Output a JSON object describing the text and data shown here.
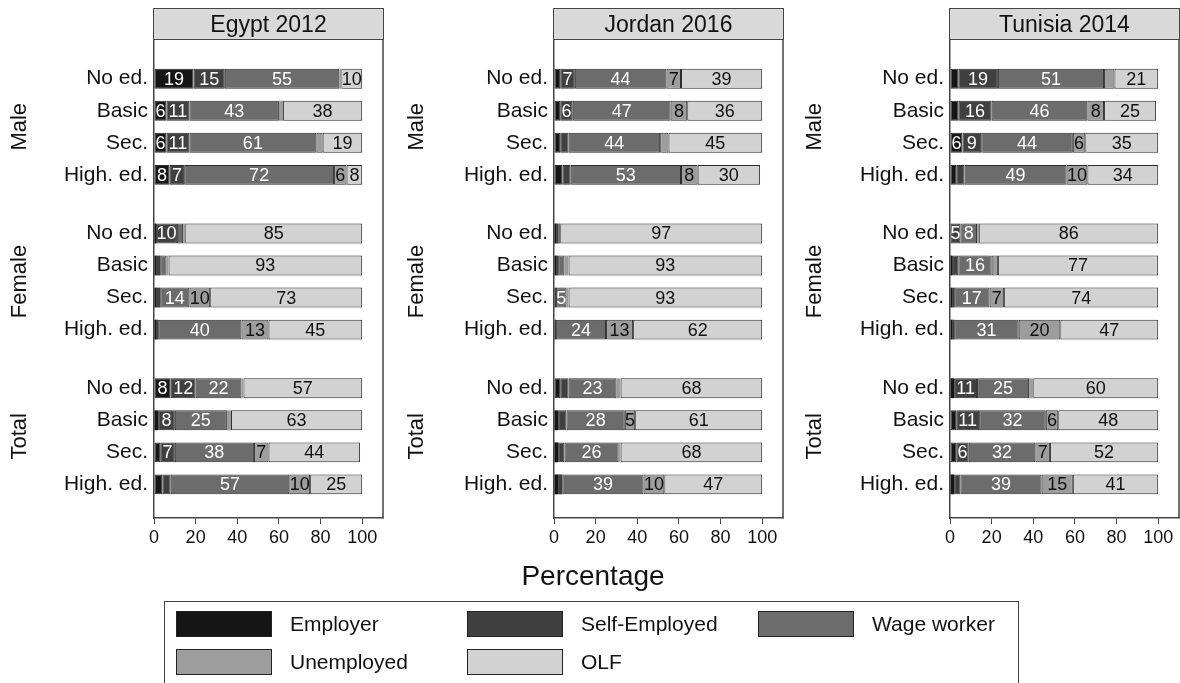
{
  "chart_data": [
    {
      "type": "bar",
      "orientation": "horizontal",
      "stacked": true,
      "title": "Egypt 2012",
      "categories": [
        "No ed.",
        "Basic",
        "Sec.",
        "High. ed.",
        null,
        "No ed.",
        "Basic",
        "Sec.",
        "High. ed.",
        null,
        "No ed.",
        "Basic",
        "Sec.",
        "High. ed."
      ],
      "annotations": [
        "Male",
        "Female",
        "Total"
      ],
      "xlim": [
        0,
        110
      ],
      "xticks": [
        0,
        20,
        40,
        60,
        80,
        100
      ],
      "series": [
        {
          "color": "#161616",
          "values": [
            19,
            6,
            6,
            7.5,
            null,
            1,
            1,
            1,
            1,
            null,
            8,
            2,
            3,
            4
          ],
          "value_labels": [
            "19",
            "6",
            "6",
            "8",
            null,
            null,
            null,
            null,
            null,
            null,
            "8",
            null,
            null,
            null
          ]
        },
        {
          "color": "#404040",
          "values": [
            15,
            11,
            11,
            7,
            null,
            10,
            2,
            2,
            1,
            null,
            12,
            8,
            7,
            4
          ],
          "value_labels": [
            "15",
            "11",
            "11",
            "7",
            null,
            "10",
            null,
            null,
            null,
            null,
            "12",
            "8",
            "7",
            null
          ]
        },
        {
          "color": "#6c6c6c",
          "values": [
            55,
            43,
            61,
            72,
            null,
            3,
            3,
            14,
            40,
            null,
            22,
            25,
            38,
            57
          ],
          "value_labels": [
            "55",
            "43",
            "61",
            "72",
            null,
            null,
            null,
            "14",
            "40",
            null,
            "22",
            "25",
            "38",
            "57"
          ]
        },
        {
          "color": "#9d9d9d",
          "values": [
            1,
            2,
            3,
            6,
            null,
            1,
            1,
            10,
            13,
            null,
            1,
            2,
            7,
            10
          ],
          "value_labels": [
            null,
            null,
            null,
            "6",
            null,
            null,
            null,
            "10",
            "13",
            null,
            null,
            null,
            "7",
            "10"
          ]
        },
        {
          "color": "#d2d2d2",
          "values": [
            10,
            38,
            19,
            7.5,
            null,
            85,
            93,
            73,
            45,
            null,
            57,
            63,
            44,
            25
          ],
          "value_labels": [
            "10",
            "38",
            "19",
            "8",
            null,
            "85",
            "93",
            "73",
            "45",
            null,
            "57",
            "63",
            "44",
            "25"
          ]
        }
      ]
    },
    {
      "type": "bar",
      "orientation": "horizontal",
      "stacked": true,
      "title": "Jordan 2016",
      "xlabel": "Percentage",
      "legend": "bottom",
      "categories": [
        "No ed.",
        "Basic",
        "Sec.",
        "High. ed.",
        null,
        "No ed.",
        "Basic",
        "Sec.",
        "High. ed.",
        null,
        "No ed.",
        "Basic",
        "Sec.",
        "High. ed."
      ],
      "annotations": [
        "Male",
        "Female",
        "Total"
      ],
      "xlim": [
        0,
        110
      ],
      "xticks": [
        0,
        20,
        40,
        60,
        80,
        100
      ],
      "series": [
        {
          "name": "Employer",
          "color": "#161616",
          "values": [
            3,
            3,
            3,
            4,
            null,
            1,
            1,
            0,
            0,
            null,
            3,
            2,
            2,
            2
          ]
        },
        {
          "name": "Self-Employed",
          "color": "#404040",
          "values": [
            7,
            6,
            4,
            4,
            null,
            1,
            1,
            1,
            1,
            null,
            4,
            4,
            3,
            2
          ],
          "value_labels": [
            "7",
            "6",
            null,
            null,
            null,
            null,
            null,
            null,
            null,
            null,
            null,
            null,
            null,
            null
          ]
        },
        {
          "name": "Wage worker",
          "color": "#6c6c6c",
          "values": [
            44,
            47,
            44,
            53,
            null,
            1,
            3,
            5,
            24,
            null,
            23,
            28,
            26,
            39
          ],
          "value_labels": [
            "44",
            "47",
            "44",
            "53",
            null,
            null,
            null,
            "5",
            "24",
            null,
            "23",
            "28",
            "26",
            "39"
          ]
        },
        {
          "name": "Unemployed",
          "color": "#9d9d9d",
          "values": [
            7,
            8,
            4,
            8,
            null,
            0,
            2,
            1,
            13,
            null,
            2,
            5,
            1,
            10
          ],
          "value_labels": [
            "7",
            "8",
            null,
            "8",
            null,
            null,
            null,
            null,
            "13",
            null,
            null,
            "5",
            null,
            "10"
          ]
        },
        {
          "name": "OLF",
          "color": "#d2d2d2",
          "values": [
            39,
            36,
            45,
            30,
            null,
            97,
            93,
            93,
            62,
            null,
            68,
            61,
            68,
            47
          ],
          "value_labels": [
            "39",
            "36",
            "45",
            "30",
            null,
            "97",
            "93",
            "93",
            "62",
            null,
            "68",
            "61",
            "68",
            "47"
          ]
        }
      ]
    },
    {
      "type": "bar",
      "orientation": "horizontal",
      "stacked": true,
      "title": "Tunisia 2014",
      "categories": [
        "No ed.",
        "Basic",
        "Sec.",
        "High. ed.",
        null,
        "No ed.",
        "Basic",
        "Sec.",
        "High. ed.",
        null,
        "No ed.",
        "Basic",
        "Sec.",
        "High. ed."
      ],
      "annotations": [
        "Male",
        "Female",
        "Total"
      ],
      "xlim": [
        0,
        110
      ],
      "xticks": [
        0,
        20,
        40,
        60,
        80,
        100
      ],
      "series": [
        {
          "color": "#161616",
          "values": [
            4,
            4,
            6,
            3,
            null,
            0,
            1,
            1,
            1,
            null,
            2,
            3,
            3,
            2
          ],
          "value_labels": [
            null,
            null,
            "6",
            null,
            null,
            null,
            null,
            null,
            null,
            null,
            null,
            null,
            null,
            null
          ]
        },
        {
          "color": "#404040",
          "values": [
            19,
            16,
            9,
            4,
            null,
            5,
            3,
            1,
            1,
            null,
            11,
            11,
            6,
            3
          ],
          "value_labels": [
            "19",
            "16",
            "9",
            null,
            null,
            "5",
            null,
            null,
            null,
            null,
            "11",
            "11",
            "6",
            null
          ]
        },
        {
          "color": "#6c6c6c",
          "values": [
            51,
            46,
            44,
            49,
            null,
            8,
            16,
            17,
            31,
            null,
            25,
            32,
            32,
            39
          ],
          "value_labels": [
            "51",
            "46",
            "44",
            "49",
            null,
            "8",
            "16",
            "17",
            "31",
            null,
            "25",
            "32",
            "32",
            "39"
          ]
        },
        {
          "color": "#9d9d9d",
          "values": [
            5,
            8,
            6,
            10,
            null,
            1,
            3,
            7,
            20,
            null,
            2,
            6,
            7,
            15
          ],
          "value_labels": [
            null,
            "8",
            "6",
            "10",
            null,
            null,
            null,
            "7",
            "20",
            null,
            null,
            "6",
            "7",
            "15"
          ]
        },
        {
          "color": "#d2d2d2",
          "values": [
            21,
            25,
            35,
            34,
            null,
            86,
            77,
            74,
            47,
            null,
            60,
            48,
            52,
            41
          ],
          "value_labels": [
            "21",
            "25",
            "35",
            "34",
            null,
            "86",
            "77",
            "74",
            "47",
            null,
            "60",
            "48",
            "52",
            "41"
          ]
        }
      ]
    }
  ]
}
